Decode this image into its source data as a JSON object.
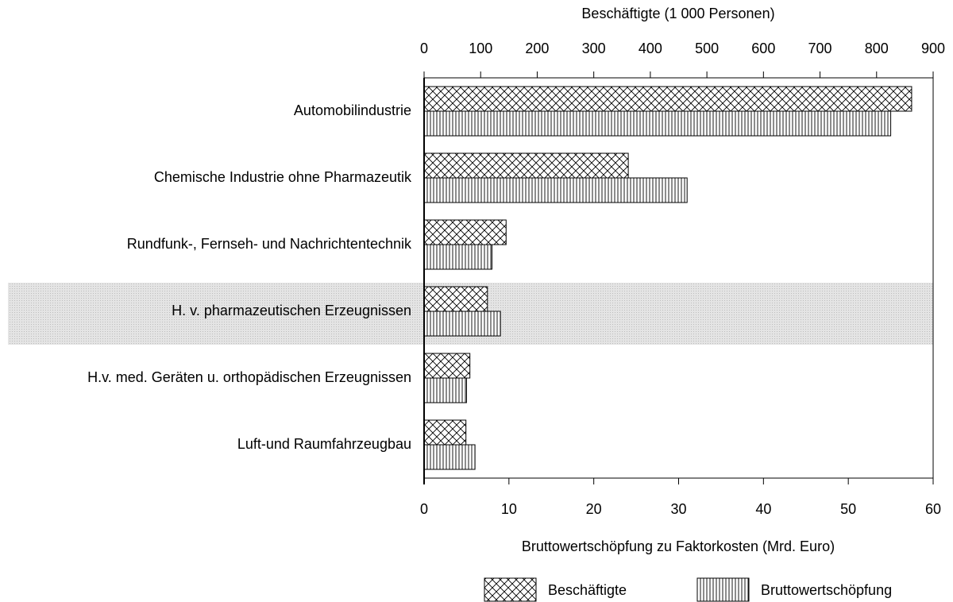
{
  "chart_data": {
    "type": "bar",
    "orientation": "horizontal",
    "xlabel": "Bruttowertschöpfung zu Faktorkosten (Mrd. Euro)",
    "x2label": "Beschäftigte (1 000 Personen)",
    "categories": [
      "Automobilindustrie",
      "Chemische Industrie ohne Pharmazeutik",
      "Rundfunk-, Fernseh- und Nachrichtentechnik",
      "H. v. pharmazeutischen Erzeugnissen",
      "H.v. med. Geräten u. orthopädischen Erzeugnissen",
      "Luft-und Raumfahrzeugbau"
    ],
    "series": [
      {
        "name": "Beschäftigte",
        "axis": "x2",
        "pattern": "crosshatch",
        "color": "#000000",
        "values": [
          862,
          361,
          145,
          112,
          81,
          74
        ]
      },
      {
        "name": "Bruttowertschöpfung",
        "axis": "x",
        "pattern": "vertical",
        "color": "#000000",
        "values": [
          55,
          31,
          8,
          9,
          5,
          6
        ]
      }
    ],
    "xlim": [
      0,
      60
    ],
    "xticks": [
      0,
      10,
      20,
      30,
      40,
      50,
      60
    ],
    "x2lim": [
      0,
      900
    ],
    "x2ticks": [
      0,
      100,
      200,
      300,
      400,
      500,
      600,
      700,
      800,
      900
    ],
    "highlight": 3,
    "highlight_color": "#d9d9d9",
    "grid": false,
    "legend": "bottom"
  }
}
